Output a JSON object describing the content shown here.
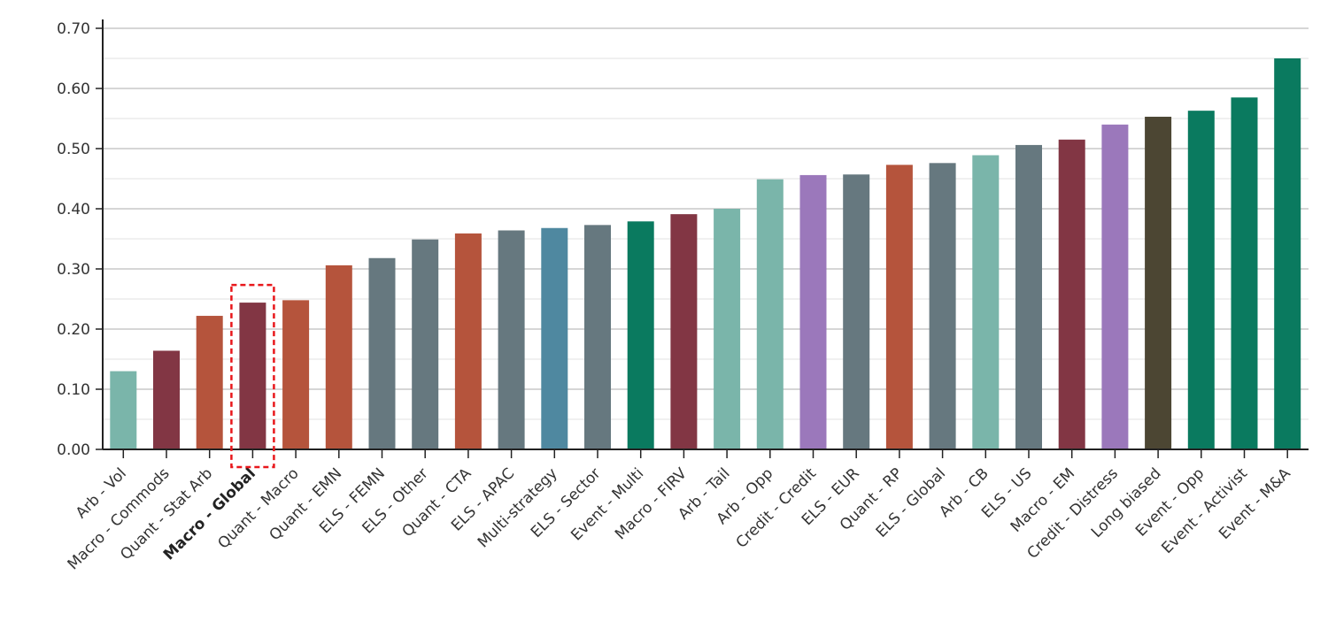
{
  "chart_data": {
    "type": "bar",
    "title": "",
    "xlabel": "",
    "ylabel": "",
    "ylim": [
      0,
      0.7
    ],
    "yticks": [
      "0.00",
      "0.10",
      "0.20",
      "0.30",
      "0.40",
      "0.50",
      "0.60",
      "0.70"
    ],
    "grid": "horizontal",
    "highlight": "Macro - Global",
    "highlight_style": "red dashed box, bold label",
    "categories": [
      "Arb - Vol",
      "Macro - Commods",
      "Quant - Stat Arb",
      "Macro - Global",
      "Quant - Macro",
      "Quant - EMN",
      "ELS - FEMN",
      "ELS - Other",
      "Quant - CTA",
      "ELS - APAC",
      "Multi-strategy",
      "ELS - Sector",
      "Event - Multi",
      "Macro - FIRV",
      "Arb - Tail",
      "Arb - Opp",
      "Credit - Credit",
      "ELS - EUR",
      "Quant - RP",
      "ELS - Global",
      "Arb - CB",
      "ELS - US",
      "Macro - EM",
      "Credit - Distress",
      "Long biased",
      "Event - Opp",
      "Event - Activist",
      "Event - M&A"
    ],
    "values": [
      0.13,
      0.164,
      0.222,
      0.244,
      0.248,
      0.306,
      0.318,
      0.349,
      0.359,
      0.364,
      0.368,
      0.373,
      0.379,
      0.391,
      0.4,
      0.449,
      0.456,
      0.457,
      0.473,
      0.476,
      0.489,
      0.506,
      0.515,
      0.54,
      0.553,
      0.563,
      0.585,
      0.65
    ],
    "colors": [
      "#7ab5aa",
      "#823644",
      "#b5543c",
      "#823644",
      "#b5543c",
      "#b5543c",
      "#66787f",
      "#66787f",
      "#b5543c",
      "#66787f",
      "#4f88a0",
      "#66787f",
      "#0a7a5f",
      "#823644",
      "#7ab5aa",
      "#7ab5aa",
      "#9b78bb",
      "#66787f",
      "#b5543c",
      "#66787f",
      "#7ab5aa",
      "#66787f",
      "#823644",
      "#9b78bb",
      "#4c4633",
      "#0a7a5f",
      "#0a7a5f",
      "#0a7a5f"
    ]
  }
}
